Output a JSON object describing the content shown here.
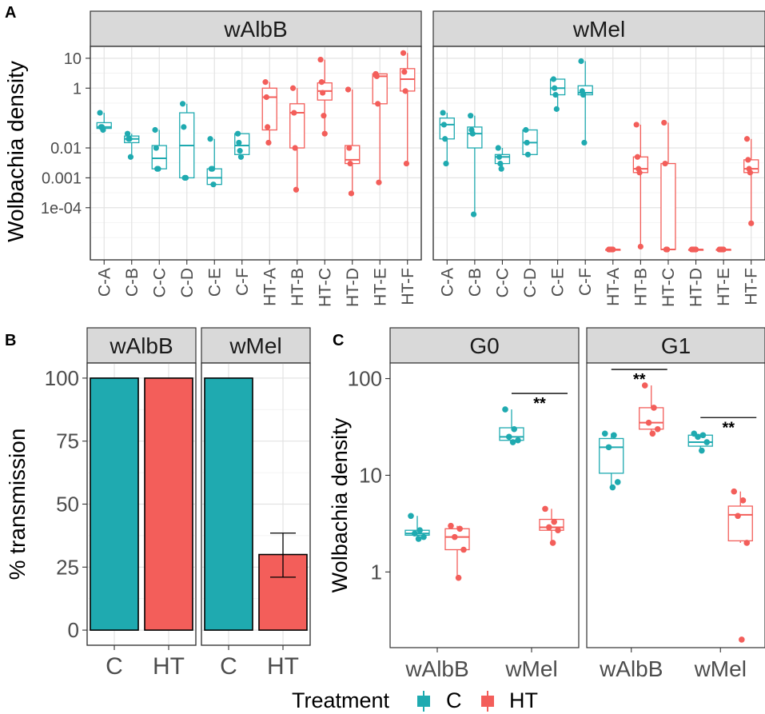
{
  "colors": {
    "C": "#1faab0",
    "HT": "#f35e5a"
  },
  "panel_labels": {
    "A": "A",
    "B": "B",
    "C": "C"
  },
  "legend": {
    "title": "Treatment",
    "items": [
      {
        "label": "C",
        "color": "#1faab0"
      },
      {
        "label": "HT",
        "color": "#f35e5a"
      }
    ]
  },
  "chart_data": [
    {
      "id": "A",
      "type": "box",
      "ylabel": "Wolbachia density",
      "yscale": "log10",
      "yticks": [
        "10",
        "1",
        "0.01",
        "0.001",
        "1e-04"
      ],
      "facets": [
        {
          "name": "wAlbB",
          "categories": [
            "C-A",
            "C-B",
            "C-C",
            "C-D",
            "C-E",
            "C-F",
            "HT-A",
            "HT-B",
            "HT-C",
            "HT-D",
            "HT-E",
            "HT-F"
          ],
          "boxes": [
            {
              "cat": "C-A",
              "group": "C",
              "lo": 0.04,
              "q1": 0.045,
              "med": 0.05,
              "q3": 0.07,
              "hi": 0.15,
              "pts": [
                0.15,
                0.05,
                0.05,
                0.04
              ]
            },
            {
              "cat": "C-B",
              "group": "C",
              "lo": 0.005,
              "q1": 0.015,
              "med": 0.02,
              "q3": 0.025,
              "hi": 0.03,
              "pts": [
                0.03,
                0.02,
                0.02,
                0.005
              ]
            },
            {
              "cat": "C-C",
              "group": "C",
              "lo": 0.002,
              "q1": 0.002,
              "med": 0.0045,
              "q3": 0.012,
              "hi": 0.04,
              "pts": [
                0.04,
                0.01,
                0.002,
                0.002
              ]
            },
            {
              "cat": "C-D",
              "group": "C",
              "lo": 0.001,
              "q1": 0.001,
              "med": 0.012,
              "q3": 0.15,
              "hi": 0.3,
              "pts": [
                0.3,
                0.05,
                0.001,
                0.001
              ]
            },
            {
              "cat": "C-E",
              "group": "C",
              "lo": 0.0006,
              "q1": 0.0006,
              "med": 0.001,
              "q3": 0.002,
              "hi": 0.02,
              "pts": [
                0.02,
                0.002,
                0.002,
                0.0006
              ]
            },
            {
              "cat": "C-F",
              "group": "C",
              "lo": 0.005,
              "q1": 0.006,
              "med": 0.012,
              "q3": 0.03,
              "hi": 0.03,
              "pts": [
                0.03,
                0.015,
                0.008,
                0.005
              ]
            },
            {
              "cat": "HT-A",
              "group": "HT",
              "lo": 0.015,
              "q1": 0.04,
              "med": 0.5,
              "q3": 1.0,
              "hi": 1.6,
              "pts": [
                1.6,
                0.5,
                0.05,
                0.015
              ]
            },
            {
              "cat": "HT-B",
              "group": "HT",
              "lo": 0.0004,
              "q1": 0.01,
              "med": 0.15,
              "q3": 0.3,
              "hi": 1.0,
              "pts": [
                1.0,
                0.15,
                0.01,
                0.0004
              ]
            },
            {
              "cat": "HT-C",
              "group": "HT",
              "lo": 0.03,
              "q1": 0.4,
              "med": 0.8,
              "q3": 1.5,
              "hi": 9,
              "pts": [
                9,
                1.6,
                0.7,
                0.12,
                0.03
              ]
            },
            {
              "cat": "HT-D",
              "group": "HT",
              "lo": 0.0003,
              "q1": 0.003,
              "med": 0.004,
              "q3": 0.012,
              "hi": 0.9,
              "pts": [
                0.9,
                0.01,
                0.003,
                0.0003
              ]
            },
            {
              "cat": "HT-E",
              "group": "HT",
              "lo": 0.0007,
              "q1": 0.3,
              "med": 2.5,
              "q3": 3.0,
              "hi": 3.0,
              "pts": [
                3.0,
                2.5,
                0.3,
                0.0007
              ]
            },
            {
              "cat": "HT-F",
              "group": "HT",
              "lo": 0.003,
              "q1": 0.8,
              "med": 2.0,
              "q3": 4.5,
              "hi": 15,
              "pts": [
                15,
                3.5,
                0.8,
                0.003
              ]
            }
          ]
        },
        {
          "name": "wMel",
          "categories": [
            "C-A",
            "C-B",
            "C-C",
            "C-D",
            "C-E",
            "C-F",
            "HT-A",
            "HT-B",
            "HT-C",
            "HT-D",
            "HT-E",
            "HT-F"
          ],
          "boxes": [
            {
              "cat": "C-A",
              "group": "C",
              "lo": 0.003,
              "q1": 0.02,
              "med": 0.06,
              "q3": 0.1,
              "hi": 0.15,
              "pts": [
                0.15,
                0.06,
                0.02,
                0.003
              ]
            },
            {
              "cat": "C-B",
              "group": "C",
              "lo": 6e-05,
              "q1": 0.01,
              "med": 0.03,
              "q3": 0.05,
              "hi": 0.12,
              "pts": [
                0.12,
                0.04,
                0.03,
                6e-05
              ]
            },
            {
              "cat": "C-C",
              "group": "C",
              "lo": 0.002,
              "q1": 0.003,
              "med": 0.005,
              "q3": 0.006,
              "hi": 0.01,
              "pts": [
                0.01,
                0.005,
                0.003,
                0.002
              ]
            },
            {
              "cat": "C-D",
              "group": "C",
              "lo": 0.006,
              "q1": 0.006,
              "med": 0.015,
              "q3": 0.04,
              "hi": 0.04,
              "pts": [
                0.04,
                0.015,
                0.006
              ]
            },
            {
              "cat": "C-E",
              "group": "C",
              "lo": 0.2,
              "q1": 0.6,
              "med": 1.0,
              "q3": 2.0,
              "hi": 2.0,
              "pts": [
                2.0,
                1.0,
                0.6,
                0.2
              ]
            },
            {
              "cat": "C-F",
              "group": "C",
              "lo": 0.015,
              "q1": 0.6,
              "med": 0.7,
              "q3": 1.2,
              "hi": 8,
              "pts": [
                8,
                0.8,
                0.6,
                0.015
              ]
            },
            {
              "cat": "HT-A",
              "group": "HT",
              "lo": 4e-06,
              "q1": 4e-06,
              "med": 4e-06,
              "q3": 4e-06,
              "hi": 4e-06,
              "pts": [
                4e-06,
                4e-06,
                4e-06,
                4e-06,
                4e-06
              ]
            },
            {
              "cat": "HT-B",
              "group": "HT",
              "lo": 5e-06,
              "q1": 0.0015,
              "med": 0.002,
              "q3": 0.005,
              "hi": 0.06,
              "pts": [
                0.06,
                0.005,
                0.002,
                0.0015,
                5e-06
              ]
            },
            {
              "cat": "HT-C",
              "group": "HT",
              "lo": 4e-06,
              "q1": 4e-06,
              "med": 4e-06,
              "q3": 0.003,
              "hi": 0.07,
              "pts": [
                0.07,
                0.003,
                4e-06,
                4e-06
              ]
            },
            {
              "cat": "HT-D",
              "group": "HT",
              "lo": 4e-06,
              "q1": 4e-06,
              "med": 4e-06,
              "q3": 4e-06,
              "hi": 4e-06,
              "pts": [
                4e-06,
                4e-06,
                4e-06,
                4e-06,
                4e-06
              ]
            },
            {
              "cat": "HT-E",
              "group": "HT",
              "lo": 4e-06,
              "q1": 4e-06,
              "med": 4e-06,
              "q3": 4e-06,
              "hi": 4e-06,
              "pts": [
                4e-06,
                4e-06,
                4e-06,
                4e-06,
                4e-06
              ]
            },
            {
              "cat": "HT-F",
              "group": "HT",
              "lo": 3e-05,
              "q1": 0.0015,
              "med": 0.002,
              "q3": 0.004,
              "hi": 0.02,
              "pts": [
                0.02,
                0.004,
                0.002,
                0.0015,
                3e-05
              ]
            }
          ]
        }
      ]
    },
    {
      "id": "B",
      "type": "bar",
      "ylabel": "% transmission",
      "ylim": [
        0,
        100
      ],
      "yticks": [
        "0",
        "25",
        "50",
        "75",
        "100"
      ],
      "facets": [
        {
          "name": "wAlbB",
          "categories": [
            "C",
            "HT"
          ],
          "values": [
            100,
            100
          ],
          "errors": [
            null,
            null
          ]
        },
        {
          "name": "wMel",
          "categories": [
            "C",
            "HT"
          ],
          "values": [
            100,
            30
          ],
          "errors": [
            null,
            [
              21,
              38.5
            ]
          ]
        }
      ]
    },
    {
      "id": "C",
      "type": "box",
      "ylabel": "Wolbachia density",
      "yscale": "log10",
      "yticks": [
        "100",
        "10",
        "1"
      ],
      "facets": [
        {
          "name": "G0",
          "categories": [
            "wAlbB",
            "wMel"
          ],
          "boxes": [
            {
              "cat": "wAlbB",
              "group": "C",
              "lo": 2.3,
              "q1": 2.4,
              "med": 2.5,
              "q3": 2.7,
              "hi": 3.8,
              "pts": [
                3.8,
                2.7,
                2.5,
                2.3,
                2.2
              ]
            },
            {
              "cat": "wAlbB",
              "group": "HT",
              "lo": 0.87,
              "q1": 1.7,
              "med": 2.3,
              "q3": 2.8,
              "hi": 3.0,
              "pts": [
                3.0,
                2.8,
                2.3,
                1.7,
                0.87
              ]
            },
            {
              "cat": "wMel",
              "group": "C",
              "lo": 22,
              "q1": 23,
              "med": 25,
              "q3": 31,
              "hi": 48,
              "pts": [
                48,
                30,
                25,
                23,
                22
              ]
            },
            {
              "cat": "wMel",
              "group": "HT",
              "lo": 2.0,
              "q1": 2.7,
              "med": 2.9,
              "q3": 3.5,
              "hi": 4.5,
              "pts": [
                4.5,
                3.3,
                2.9,
                2.7,
                2.0
              ]
            }
          ],
          "annotations": [
            {
              "text": "**",
              "between": [
                "wMel-C",
                "wMel-HT"
              ]
            }
          ]
        },
        {
          "name": "G1",
          "categories": [
            "wAlbB",
            "wMel"
          ],
          "boxes": [
            {
              "cat": "wAlbB",
              "group": "C",
              "lo": 7.5,
              "q1": 10.5,
              "med": 19.5,
              "q3": 24,
              "hi": 27,
              "pts": [
                27,
                26,
                19.5,
                8.5,
                7.5
              ]
            },
            {
              "cat": "wAlbB",
              "group": "HT",
              "lo": 27,
              "q1": 30,
              "med": 35,
              "q3": 50,
              "hi": 85,
              "pts": [
                85,
                50,
                35,
                30,
                27
              ]
            },
            {
              "cat": "wMel",
              "group": "C",
              "lo": 18,
              "q1": 20,
              "med": 22,
              "q3": 26,
              "hi": 27,
              "pts": [
                27,
                26,
                25,
                22,
                18
              ]
            },
            {
              "cat": "wMel",
              "group": "HT",
              "lo": 2.0,
              "q1": 2.1,
              "med": 3.9,
              "q3": 4.8,
              "hi": 6.8,
              "pts": [
                6.8,
                5.5,
                3.8,
                2.0,
                0.2
              ]
            }
          ],
          "annotations": [
            {
              "text": "**",
              "between": [
                "wAlbB-C",
                "wAlbB-HT"
              ]
            },
            {
              "text": "**",
              "between": [
                "wMel-C",
                "wMel-HT"
              ]
            }
          ]
        }
      ]
    }
  ]
}
